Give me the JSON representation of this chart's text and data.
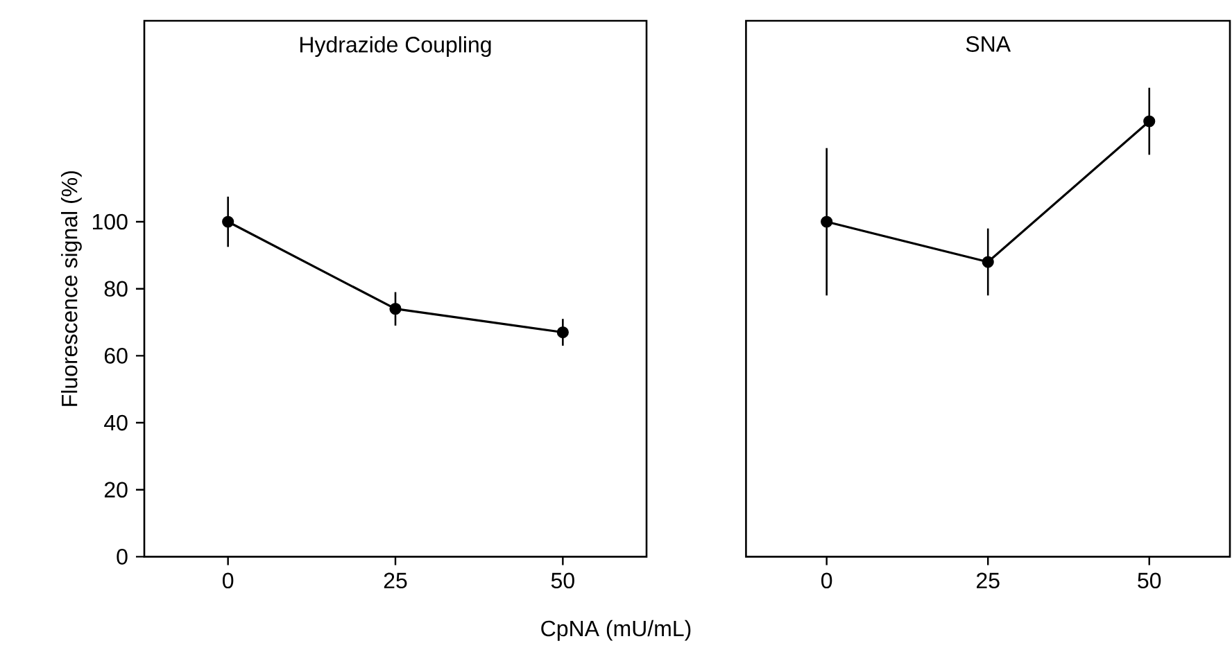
{
  "chart_data": [
    {
      "type": "line",
      "title": "Hydrazide Coupling",
      "xlabel": "CpNA (mU/mL)",
      "ylabel": "Fluorescence signal (%)",
      "x": [
        0,
        25,
        50
      ],
      "xlim": [
        -12.5,
        62.5
      ],
      "xticks": [
        0,
        25,
        50
      ],
      "ylim": [
        0,
        160
      ],
      "yticks": [
        0,
        20,
        40,
        60,
        80,
        100
      ],
      "marker": "circle",
      "line_style": "solid",
      "series": [
        {
          "color": "#000000",
          "values": [
            100,
            74,
            67
          ],
          "errors": [
            7.5,
            5,
            4
          ]
        }
      ]
    },
    {
      "type": "line",
      "title": "SNA",
      "x": [
        0,
        25,
        50
      ],
      "xlim": [
        -12.5,
        62.5
      ],
      "xticks": [
        0,
        25,
        50
      ],
      "ylim": [
        0,
        160
      ],
      "tick_labels": "x",
      "marker": "circle",
      "line_style": "solid",
      "series": [
        {
          "color": "#000000",
          "values": [
            100,
            88,
            130
          ],
          "errors": [
            22,
            10,
            10
          ]
        }
      ]
    }
  ]
}
